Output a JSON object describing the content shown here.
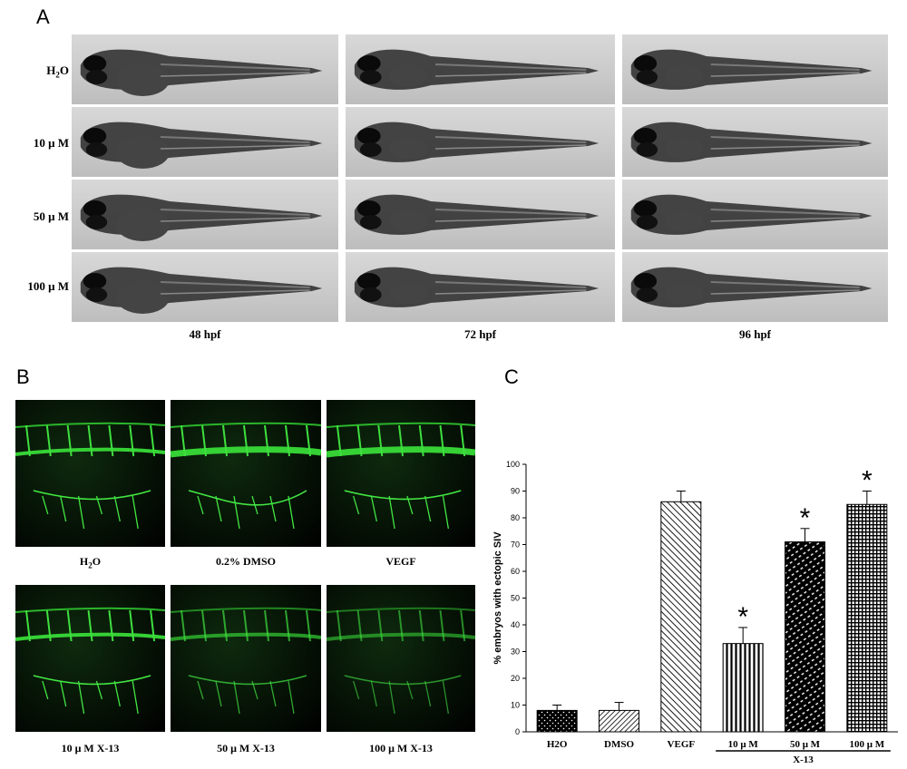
{
  "panel_a": {
    "letter": "A",
    "rows": [
      "H2O",
      "10 μ M",
      "50 μ M",
      "100 μ M"
    ],
    "columns": [
      "48 hpf",
      "72 hpf",
      "96 hpf"
    ]
  },
  "panel_b": {
    "letter": "B",
    "top_labels": [
      "H2O",
      "0.2% DMSO",
      "VEGF"
    ],
    "bottom_labels": [
      "10 μ M X-13",
      "50 μ M X-13",
      "100 μ M X-13"
    ]
  },
  "panel_c": {
    "letter": "C",
    "group_label": "X-13",
    "significance_marker": "*"
  },
  "chart_data": {
    "type": "bar",
    "categories": [
      "H2O",
      "DMSO",
      "VEGF",
      "10 μ M",
      "50 μ M",
      "100 μ M"
    ],
    "values": [
      8,
      8,
      86,
      33,
      71,
      85
    ],
    "errors": [
      2,
      3,
      4,
      6,
      5,
      5
    ],
    "significant": [
      false,
      false,
      false,
      true,
      true,
      true
    ],
    "ylabel": "% embryos with ectopic SIV",
    "ylim": [
      0,
      100
    ],
    "yticks": [
      0,
      10,
      20,
      30,
      40,
      50,
      60,
      70,
      80,
      90,
      100
    ],
    "grid": false,
    "legend": "none"
  }
}
